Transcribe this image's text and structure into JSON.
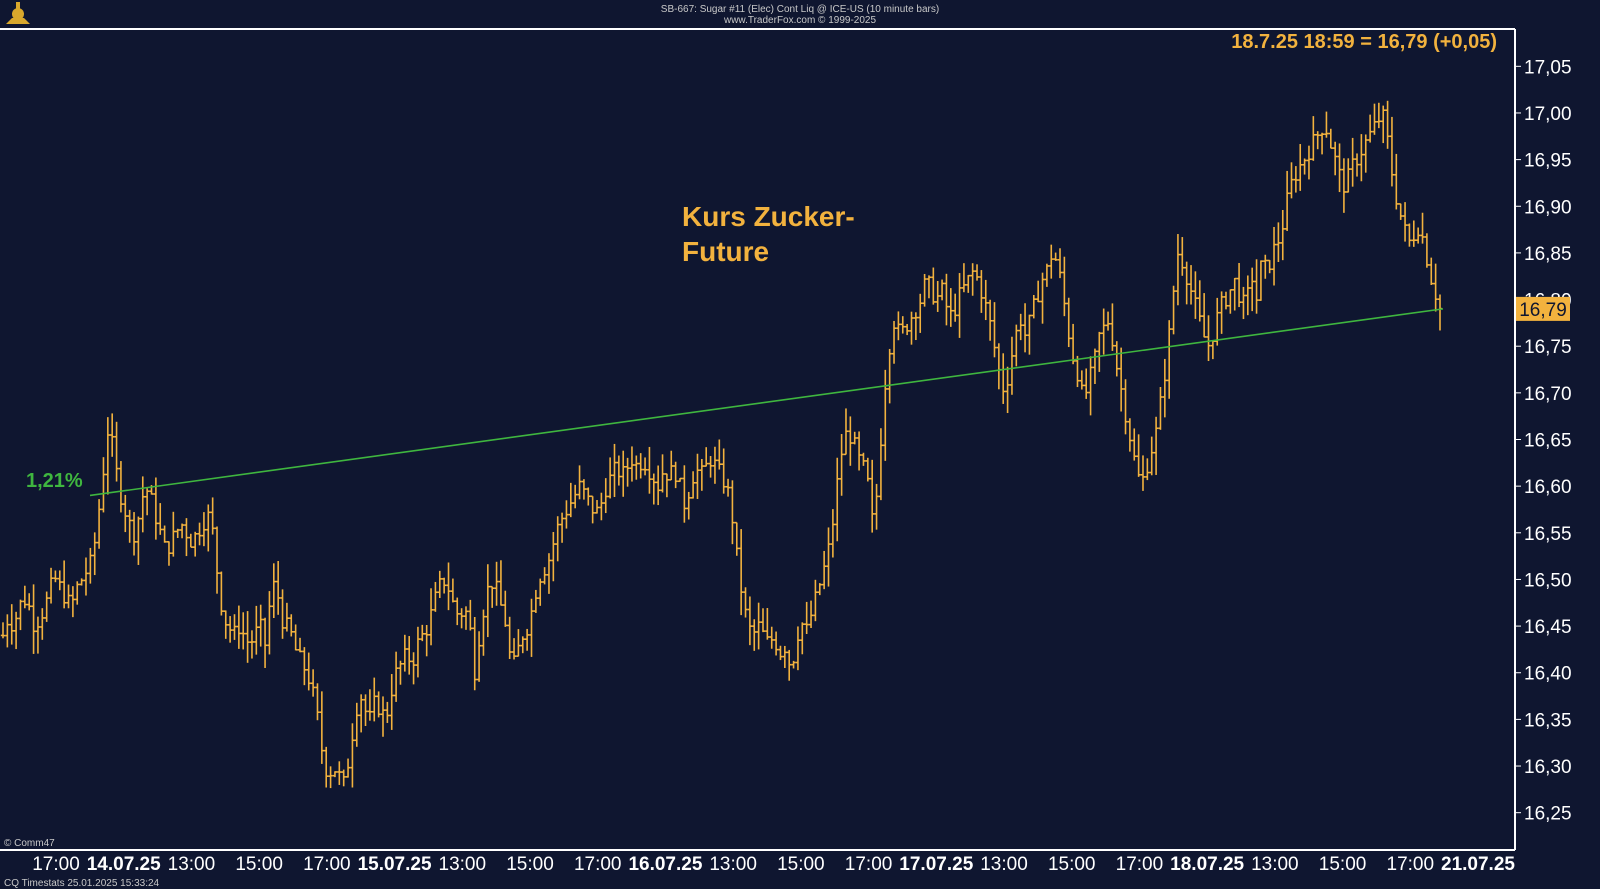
{
  "header": {
    "line1": "SB-667:  Sugar #11 (Elec) Cont Liq @ ICE-US  (10 minute bars)",
    "line2": "www.TraderFox.com © 1999-2025"
  },
  "last_value_label": "18.7.25 18:59 = 16,79 (+0,05)",
  "current_price_label": "16,79",
  "annotation": {
    "line1": "Kurs Zucker-",
    "line2": "Future"
  },
  "trendline": {
    "label": "1,21%",
    "start_value": 16.59,
    "end_value": 16.79,
    "color": "#3fb63f"
  },
  "footer": {
    "left": "© Comm47",
    "bottom": "CQ  Timestats     25.01.2025  15:33:24"
  },
  "colors": {
    "background": "#0f1630",
    "bars": "#f2b23e",
    "axis": "#ffffff",
    "text": "#ffffff",
    "accent": "#f2b23e",
    "trendline": "#3fb63f"
  },
  "chart_data": {
    "type": "ohlc",
    "title": "",
    "xlabel": "",
    "ylabel": "",
    "ylim": [
      16.21,
      17.09
    ],
    "y_ticks": [
      "17,05",
      "17,00",
      "16,95",
      "16,90",
      "16,85",
      "16,80",
      "16,75",
      "16,70",
      "16,65",
      "16,60",
      "16,55",
      "16,50",
      "16,45",
      "16,40",
      "16,35",
      "16,30",
      "16,25"
    ],
    "x_ticks": [
      {
        "label": "17:00",
        "bold": false
      },
      {
        "label": "14.07.25",
        "bold": true
      },
      {
        "label": "13:00",
        "bold": false
      },
      {
        "label": "15:00",
        "bold": false
      },
      {
        "label": "17:00",
        "bold": false
      },
      {
        "label": "15.07.25",
        "bold": true
      },
      {
        "label": "13:00",
        "bold": false
      },
      {
        "label": "15:00",
        "bold": false
      },
      {
        "label": "17:00",
        "bold": false
      },
      {
        "label": "16.07.25",
        "bold": true
      },
      {
        "label": "13:00",
        "bold": false
      },
      {
        "label": "15:00",
        "bold": false
      },
      {
        "label": "17:00",
        "bold": false
      },
      {
        "label": "17.07.25",
        "bold": true
      },
      {
        "label": "13:00",
        "bold": false
      },
      {
        "label": "15:00",
        "bold": false
      },
      {
        "label": "17:00",
        "bold": false
      },
      {
        "label": "18.07.25",
        "bold": true
      },
      {
        "label": "13:00",
        "bold": false
      },
      {
        "label": "15:00",
        "bold": false
      },
      {
        "label": "17:00",
        "bold": false
      },
      {
        "label": "21.07.25",
        "bold": true
      }
    ],
    "series": [
      {
        "closes": [
          16.44,
          16.46,
          16.45,
          16.47,
          16.48,
          16.47,
          16.45,
          16.46,
          16.47,
          16.49,
          16.5,
          16.49,
          16.48,
          16.47,
          16.49,
          16.5,
          16.51,
          16.52,
          16.56,
          16.61,
          16.66,
          16.64,
          16.6,
          16.58,
          16.56,
          16.55,
          16.57,
          16.6,
          16.59,
          16.57,
          16.55,
          16.53,
          16.54,
          16.55,
          16.56,
          16.55,
          16.54,
          16.55,
          16.56,
          16.57,
          16.55,
          16.5,
          16.46,
          16.45,
          16.44,
          16.45,
          16.44,
          16.43,
          16.44,
          16.45,
          16.43,
          16.48,
          16.5,
          16.46,
          16.45,
          16.44,
          16.42,
          16.41,
          16.4,
          16.38,
          16.35,
          16.31,
          16.29,
          16.3,
          16.29,
          16.28,
          16.31,
          16.35,
          16.38,
          16.36,
          16.35,
          16.37,
          16.36,
          16.35,
          16.38,
          16.4,
          16.41,
          16.42,
          16.41,
          16.43,
          16.44,
          16.45,
          16.47,
          16.49,
          16.5,
          16.49,
          16.47,
          16.46,
          16.47,
          16.45,
          16.4,
          16.45,
          16.48,
          16.5,
          16.49,
          16.47,
          16.45,
          16.4,
          16.42,
          16.44,
          16.45,
          16.47,
          16.5,
          16.51,
          16.52,
          16.54,
          16.56,
          16.57,
          16.58,
          16.59,
          16.6,
          16.59,
          16.58,
          16.57,
          16.58,
          16.6,
          16.61,
          16.62,
          16.61,
          16.62,
          16.63,
          16.62,
          16.63,
          16.62,
          16.61,
          16.6,
          16.62,
          16.61,
          16.62,
          16.6,
          16.58,
          16.6,
          16.62,
          16.61,
          16.62,
          16.63,
          16.62,
          16.61,
          16.6,
          16.57,
          16.52,
          16.48,
          16.45,
          16.44,
          16.45,
          16.44,
          16.43,
          16.44,
          16.42,
          16.43,
          16.41,
          16.42,
          16.46,
          16.44,
          16.46,
          16.48,
          16.5,
          16.52,
          16.55,
          16.6,
          16.64,
          16.66,
          16.65,
          16.63,
          16.62,
          16.6,
          16.55,
          16.62,
          16.7,
          16.75,
          16.78,
          16.76,
          16.77,
          16.78,
          16.79,
          16.8,
          16.82,
          16.81,
          16.8,
          16.81,
          16.79,
          16.78,
          16.8,
          16.81,
          16.82,
          16.83,
          16.82,
          16.8,
          16.78,
          16.75,
          16.72,
          16.7,
          16.73,
          16.76,
          16.78,
          16.76,
          16.78,
          16.8,
          16.82,
          16.83,
          16.85,
          16.84,
          16.81,
          16.77,
          16.74,
          16.72,
          16.69,
          16.71,
          16.73,
          16.76,
          16.77,
          16.78,
          16.74,
          16.71,
          16.68,
          16.65,
          16.62,
          16.6,
          16.62,
          16.64,
          16.66,
          16.7,
          16.74,
          16.8,
          16.85,
          16.84,
          16.82,
          16.8,
          16.78,
          16.76,
          16.75,
          16.77,
          16.79,
          16.8,
          16.81,
          16.82,
          16.8,
          16.79,
          16.83,
          16.8,
          16.84,
          16.83,
          16.85,
          16.86,
          16.88,
          16.91,
          16.93,
          16.94,
          16.95,
          16.96,
          16.97,
          16.98,
          16.99,
          16.97,
          16.95,
          16.93,
          16.92,
          16.94,
          16.95,
          16.96,
          16.97,
          16.98,
          16.99,
          17.0,
          16.97,
          16.93,
          16.9,
          16.88,
          16.86,
          16.87,
          16.88,
          16.86,
          16.83,
          16.81,
          16.79
        ]
      }
    ]
  }
}
